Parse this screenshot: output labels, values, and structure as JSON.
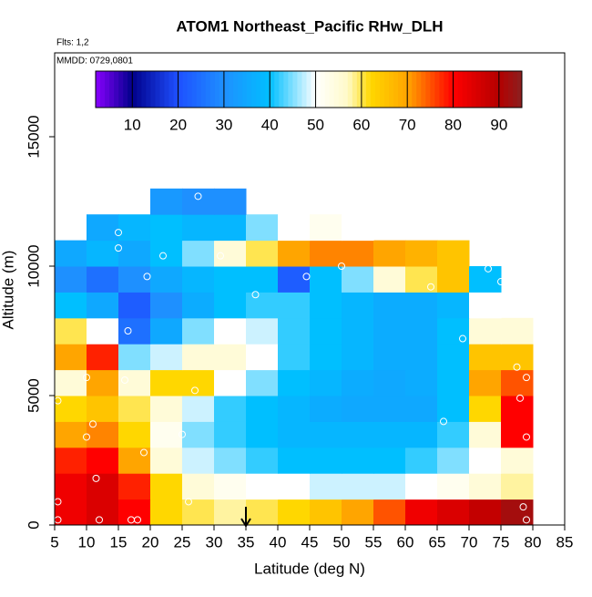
{
  "chart_data": {
    "type": "heatmap",
    "title": "ATOM1 Northeast_Pacific RHw_DLH",
    "annotations": [
      "Flts: 1,2",
      "MMDD: 0729,0801"
    ],
    "x_label": "Latitude (deg N)",
    "y_label": "Altitude (m)",
    "xlim": [
      5,
      85
    ],
    "xticks": [
      5,
      10,
      15,
      20,
      25,
      30,
      35,
      40,
      45,
      50,
      55,
      60,
      65,
      70,
      75,
      80,
      85
    ],
    "ylim": [
      0,
      18240
    ],
    "yticks": [
      0,
      5000,
      10000,
      15000
    ],
    "xbins": [
      5,
      10,
      15,
      20,
      25,
      30,
      35,
      40,
      45,
      50,
      55,
      60,
      65,
      70,
      75,
      80
    ],
    "ybins": [
      0,
      1000,
      2000,
      3000,
      4000,
      5000,
      6000,
      7000,
      8000,
      9000,
      10000,
      11000,
      12000,
      13000
    ],
    "z": [
      [
        82,
        85,
        80,
        62,
        60,
        58,
        60,
        62,
        65,
        70,
        75,
        82,
        85,
        88,
        92
      ],
      [
        82,
        85,
        78,
        62,
        55,
        52,
        50,
        50,
        48,
        48,
        48,
        50,
        52,
        55,
        58
      ],
      [
        78,
        80,
        70,
        55,
        48,
        45,
        42,
        40,
        40,
        40,
        40,
        42,
        45,
        50,
        55
      ],
      [
        70,
        72,
        62,
        52,
        45,
        42,
        40,
        38,
        38,
        38,
        38,
        38,
        42,
        55,
        80
      ],
      [
        62,
        65,
        60,
        55,
        48,
        42,
        40,
        38,
        36,
        35,
        35,
        35,
        40,
        62,
        80
      ],
      [
        55,
        70,
        55,
        62,
        62,
        50,
        45,
        40,
        38,
        36,
        35,
        36,
        40,
        70,
        75
      ],
      [
        70,
        78,
        45,
        48,
        55,
        55,
        50,
        42,
        40,
        38,
        36,
        36,
        40,
        65,
        65
      ],
      [
        60,
        50,
        25,
        35,
        45,
        50,
        48,
        42,
        40,
        38,
        36,
        36,
        40,
        55,
        55
      ],
      [
        40,
        35,
        22,
        30,
        36,
        40,
        42,
        42,
        40,
        38,
        36,
        36,
        38,
        50,
        null
      ],
      [
        30,
        25,
        30,
        35,
        38,
        40,
        40,
        22,
        40,
        45,
        55,
        60,
        65,
        40,
        null
      ],
      [
        35,
        38,
        35,
        40,
        45,
        55,
        60,
        70,
        72,
        72,
        70,
        68,
        65,
        null,
        null
      ],
      [
        null,
        35,
        38,
        40,
        38,
        38,
        45,
        50,
        52,
        50,
        null,
        null,
        null,
        null,
        null
      ],
      [
        null,
        null,
        null,
        32,
        30,
        30,
        null,
        null,
        null,
        null,
        null,
        null,
        null,
        null,
        null
      ]
    ],
    "colorscale": [
      [
        2,
        "#8a00ff"
      ],
      [
        10,
        "#00008b"
      ],
      [
        20,
        "#1e50ff"
      ],
      [
        30,
        "#1e90ff"
      ],
      [
        40,
        "#00bfff"
      ],
      [
        50,
        "#ffffff"
      ],
      [
        57,
        "#fffac8"
      ],
      [
        62,
        "#ffd700"
      ],
      [
        70,
        "#ffa500"
      ],
      [
        80,
        "#ff0000"
      ],
      [
        90,
        "#b40000"
      ],
      [
        95,
        "#8b2020"
      ]
    ],
    "zlim": [
      2,
      95
    ],
    "zticks": [
      10,
      20,
      30,
      40,
      50,
      60,
      70,
      80,
      90
    ],
    "points": {
      "lat": [
        5.5,
        5.5,
        5.5,
        8,
        10,
        10,
        11,
        11.5,
        12,
        15,
        15,
        16,
        16.5,
        17,
        18,
        19,
        19.5,
        22,
        25,
        26,
        27,
        27.5,
        31,
        36.5,
        44.5,
        50,
        64,
        66,
        69,
        71,
        73,
        74,
        75,
        76.5,
        77.5,
        78,
        78.5,
        79,
        79,
        79
      ],
      "alt": [
        4800,
        900,
        200,
        11300,
        5700,
        3400,
        3900,
        1800,
        200,
        11300,
        10700,
        5600,
        7500,
        200,
        200,
        2800,
        9600,
        10400,
        3500,
        900,
        5200,
        12700,
        10400,
        8900,
        9600,
        10000,
        9200,
        4000,
        7200,
        8200,
        9900,
        8600,
        9400,
        9700,
        6100,
        4900,
        700,
        5700,
        3400,
        200
      ]
    },
    "arrow_x": 35
  }
}
